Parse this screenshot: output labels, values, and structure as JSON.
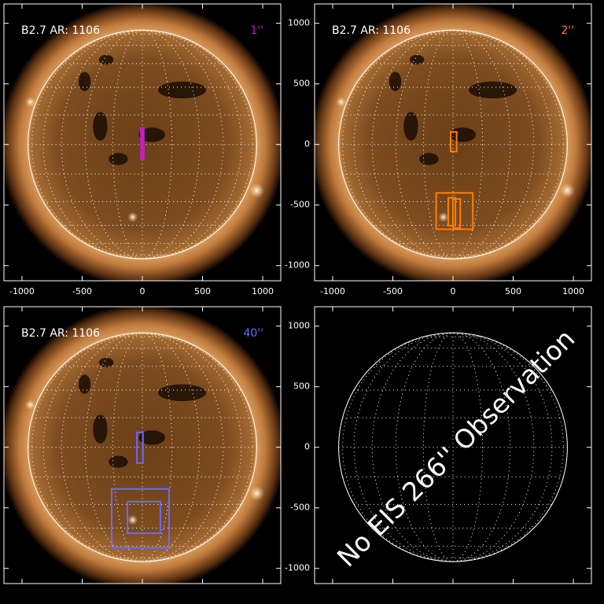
{
  "chart_data": [
    {
      "type": "image",
      "label": "B2.7 AR: 1106",
      "resolution": "1''",
      "resolution_color": "#c020c0",
      "xlim": [
        -1150,
        1150
      ],
      "ylim": [
        -1125,
        1160
      ],
      "xticks": [
        -1000,
        -500,
        0,
        500,
        1000
      ],
      "yticks": [
        -1000,
        -500,
        0,
        500,
        1000
      ],
      "boxes": [
        {
          "x": [
            -12,
            12
          ],
          "y": [
            -125,
            136
          ],
          "color": "#c020c0",
          "filled": true
        }
      ]
    },
    {
      "type": "image",
      "label": "B2.7 AR: 1106",
      "resolution": "2''",
      "resolution_color": "#ff7f00",
      "xlim": [
        -1150,
        1150
      ],
      "ylim": [
        -1125,
        1160
      ],
      "xticks": [
        -1000,
        -500,
        0,
        500,
        1000
      ],
      "yticks": [
        -1000,
        -500,
        0,
        500,
        1000
      ],
      "boxes": [
        {
          "x": [
            -20,
            30
          ],
          "y": [
            -58,
            104
          ],
          "color": "#ff7f00",
          "filled": false
        },
        {
          "x": [
            -140,
            165
          ],
          "y": [
            -700,
            -400
          ],
          "color": "#ff7f00",
          "filled": false
        },
        {
          "x": [
            -40,
            20
          ],
          "y": [
            -670,
            -440
          ],
          "color": "#ff7f00",
          "filled": false
        },
        {
          "x": [
            0,
            60
          ],
          "y": [
            -690,
            -450
          ],
          "color": "#ff7f00",
          "filled": false
        }
      ]
    },
    {
      "type": "image",
      "label": "B2.7 AR: 1106",
      "resolution": "40''",
      "resolution_color": "#6a6aff",
      "xlim": [
        -1150,
        1150
      ],
      "ylim": [
        -1125,
        1160
      ],
      "xticks": [
        -1000,
        -500,
        0,
        500,
        1000
      ],
      "yticks": [
        -1000,
        -500,
        0,
        500,
        1000
      ],
      "boxes": [
        {
          "x": [
            -45,
            5
          ],
          "y": [
            -130,
            123
          ],
          "color": "#6a6aff",
          "filled": false
        },
        {
          "x": [
            -255,
            222
          ],
          "y": [
            -831,
            -344
          ],
          "color": "#6a6aff",
          "filled": false
        },
        {
          "x": [
            -124,
            150
          ],
          "y": [
            -710,
            -449
          ],
          "color": "#6a6aff",
          "filled": false
        }
      ]
    },
    {
      "type": "grid",
      "annotation": "No EIS 266'' Observation",
      "xlim": [
        -1150,
        1150
      ],
      "ylim": [
        -1125,
        1160
      ],
      "xticks": [
        -1000,
        -500,
        0,
        500,
        1000
      ],
      "yticks": [
        -1000,
        -500,
        0,
        500,
        1000
      ]
    }
  ]
}
